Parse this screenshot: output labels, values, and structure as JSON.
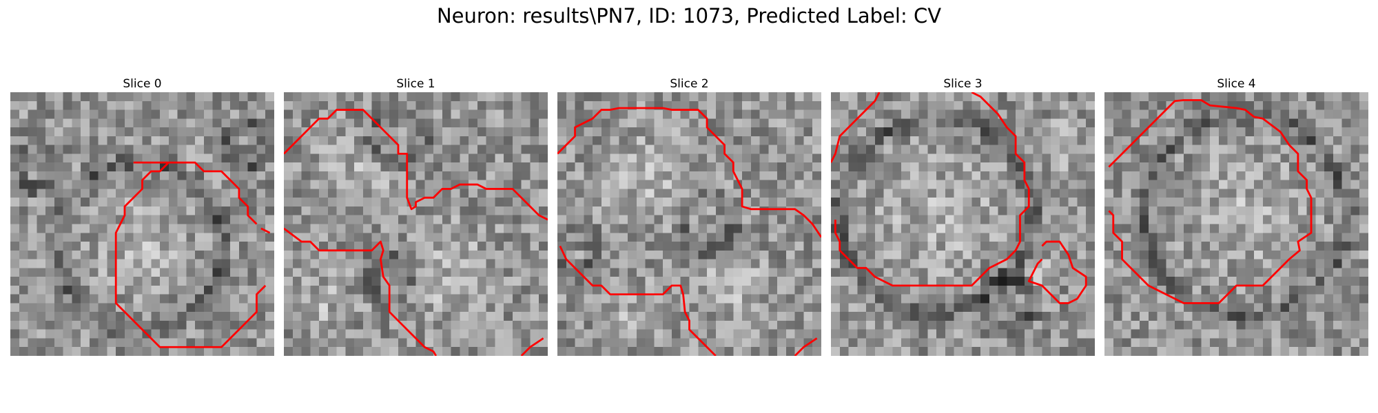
{
  "figure": {
    "title": "Neuron: results\\PN7, ID: 1073, Predicted Label: CV",
    "contour_color": "#ff0000",
    "colormap": "gray"
  },
  "panels": [
    {
      "title": "Slice 0",
      "seed": 11
    },
    {
      "title": "Slice 1",
      "seed": 23
    },
    {
      "title": "Slice 2",
      "seed": 37
    },
    {
      "title": "Slice 3",
      "seed": 41
    },
    {
      "title": "Slice 4",
      "seed": 53
    }
  ]
}
